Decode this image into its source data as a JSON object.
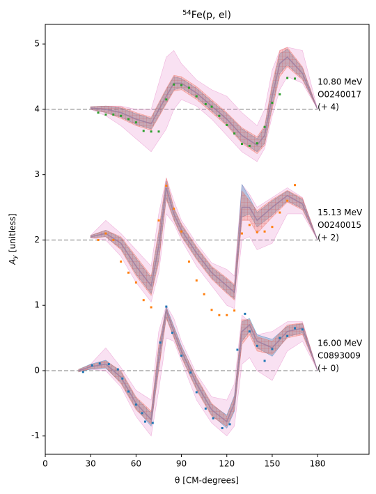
{
  "chart_data": {
    "type": "scatter",
    "title_sup": "54",
    "title": "Fe(p, el)",
    "xlabel": "θ [CM-degrees]",
    "ylabel": "A",
    "ylabel_sub": "y",
    "ylabel_unit": "[unitless]",
    "xlim": [
      0,
      214
    ],
    "ylim": [
      -1.28,
      5.3
    ],
    "xticks": [
      0,
      30,
      60,
      90,
      120,
      150,
      180
    ],
    "yticks": [
      -1,
      0,
      1,
      2,
      3,
      4,
      5
    ],
    "baseline_xlim": [
      0,
      180
    ],
    "model_color": "#9a7aa0",
    "datasets": [
      {
        "energy": "16.00 MeV",
        "entry": "C0893009",
        "offset": {
          "value": 0,
          "label": "(+ 0)"
        },
        "color": "#1f77b4",
        "x": [
          25,
          31,
          36,
          42,
          48,
          51,
          55,
          60,
          64,
          66,
          71,
          76,
          80,
          84,
          90,
          96,
          100,
          106,
          111,
          117,
          122,
          127,
          132,
          135,
          140,
          145,
          150,
          155,
          160,
          165,
          170
        ],
        "values": [
          -0.02,
          0.08,
          0.11,
          0.1,
          0.02,
          -0.12,
          -0.32,
          -0.52,
          -0.65,
          -0.78,
          -0.8,
          0.43,
          0.98,
          0.58,
          0.23,
          -0.03,
          -0.33,
          -0.58,
          -0.73,
          -0.88,
          -0.82,
          0.32,
          0.87,
          0.6,
          0.38,
          0.15,
          0.33,
          0.5,
          0.53,
          0.65,
          0.63
        ],
        "model": {
          "x": [
            22,
            30,
            40,
            50,
            60,
            70,
            75,
            80,
            85,
            90,
            100,
            110,
            120,
            125,
            130,
            135,
            140,
            150,
            160,
            170,
            180
          ],
          "mean": [
            0,
            0.06,
            0.1,
            -0.1,
            -0.5,
            -0.75,
            0.2,
            0.92,
            0.6,
            0.3,
            -0.2,
            -0.6,
            -0.78,
            -0.5,
            0.6,
            0.7,
            0.45,
            0.35,
            0.6,
            0.65,
            0
          ],
          "bands": [
            {
              "color": "#e377c2",
              "lower": [
                0,
                0.02,
                0,
                -0.25,
                -0.7,
                -1.0,
                -0.3,
                0.5,
                0.45,
                0.15,
                -0.45,
                -0.8,
                -1.0,
                -0.85,
                0.1,
                0.2,
                0.0,
                -0.15,
                0.3,
                0.45,
                0
              ],
              "upper": [
                0,
                0.1,
                0.35,
                0.05,
                -0.3,
                -0.45,
                0.6,
                1.0,
                0.8,
                0.45,
                -0.05,
                -0.4,
                -0.45,
                -0.2,
                0.85,
                0.75,
                0.55,
                0.6,
                0.75,
                0.75,
                0
              ]
            },
            {
              "color": "#1f77b4",
              "lower": [
                -0.02,
                0.02,
                0.04,
                -0.18,
                -0.58,
                -0.85,
                0.05,
                0.82,
                0.52,
                0.22,
                -0.28,
                -0.68,
                -0.88,
                -0.62,
                0.45,
                0.6,
                0.35,
                0.22,
                0.52,
                0.58,
                0
              ],
              "upper": [
                0.02,
                0.1,
                0.16,
                -0.02,
                -0.42,
                -0.65,
                0.35,
                0.98,
                0.68,
                0.38,
                -0.12,
                -0.52,
                -0.68,
                -0.38,
                0.75,
                0.8,
                0.55,
                0.48,
                0.68,
                0.72,
                0
              ]
            },
            {
              "color": "#f0705a",
              "lower": [
                -0.02,
                0.03,
                0.05,
                -0.2,
                -0.6,
                -0.82,
                0.0,
                0.8,
                0.5,
                0.2,
                -0.3,
                -0.7,
                -0.85,
                -0.6,
                0.4,
                0.55,
                0.3,
                0.25,
                0.5,
                0.55,
                0
              ],
              "upper": [
                0.02,
                0.09,
                0.15,
                0,
                -0.4,
                -0.62,
                0.4,
                0.96,
                0.66,
                0.36,
                -0.1,
                -0.5,
                -0.7,
                -0.4,
                0.78,
                0.78,
                0.52,
                0.45,
                0.7,
                0.73,
                0
              ]
            }
          ]
        }
      },
      {
        "energy": "15.13 MeV",
        "entry": "O0240015",
        "offset": {
          "value": 2,
          "label": "(+ 2)"
        },
        "color": "#ff7f0e",
        "x": [
          35,
          40,
          45,
          50,
          55,
          60,
          65,
          70,
          75,
          80,
          85,
          90,
          95,
          100,
          105,
          110,
          115,
          120,
          125,
          130,
          135,
          140,
          145,
          150,
          155,
          160,
          165
        ],
        "values": [
          2.0,
          2.1,
          2.0,
          1.67,
          1.5,
          1.35,
          1.08,
          0.97,
          2.3,
          2.83,
          2.48,
          2.13,
          1.67,
          1.38,
          1.17,
          0.93,
          0.85,
          0.85,
          0.92,
          2.1,
          2.23,
          2.12,
          2.13,
          2.2,
          2.42,
          2.6,
          2.84
        ],
        "model": {
          "x": [
            30,
            40,
            50,
            60,
            70,
            75,
            80,
            85,
            90,
            100,
            110,
            120,
            125,
            130,
            135,
            140,
            150,
            160,
            170,
            180
          ],
          "mean": [
            2.05,
            2.1,
            1.95,
            1.6,
            1.3,
            1.9,
            2.8,
            2.4,
            2.15,
            1.8,
            1.5,
            1.3,
            1.2,
            2.5,
            2.5,
            2.3,
            2.5,
            2.68,
            2.55,
            2.0
          ],
          "bands": [
            {
              "color": "#e377c2",
              "lower": [
                2.03,
                2.0,
                1.75,
                1.35,
                1.05,
                1.5,
                2.4,
                2.25,
                2.0,
                1.6,
                1.3,
                1.0,
                0.95,
                2.0,
                2.05,
                1.85,
                1.95,
                2.4,
                2.4,
                2.0
              ],
              "upper": [
                2.07,
                2.3,
                2.1,
                1.85,
                1.6,
                2.4,
                2.95,
                2.6,
                2.3,
                1.95,
                1.65,
                1.55,
                1.45,
                2.85,
                2.7,
                2.5,
                2.65,
                2.8,
                2.65,
                2.0
              ]
            },
            {
              "color": "#1f77b4",
              "lower": [
                2.03,
                2.05,
                1.87,
                1.48,
                1.18,
                1.7,
                2.65,
                2.32,
                2.07,
                1.72,
                1.42,
                1.2,
                1.1,
                2.35,
                2.4,
                2.2,
                2.38,
                2.6,
                2.48,
                2.0
              ],
              "upper": [
                2.07,
                2.15,
                2.03,
                1.72,
                1.42,
                2.1,
                2.9,
                2.48,
                2.23,
                1.88,
                1.58,
                1.4,
                1.3,
                2.85,
                2.65,
                2.42,
                2.6,
                2.75,
                2.62,
                2.0
              ]
            },
            {
              "color": "#f0705a",
              "lower": [
                2.03,
                2.05,
                1.85,
                1.45,
                1.15,
                1.65,
                2.62,
                2.3,
                2.05,
                1.7,
                1.4,
                1.18,
                1.08,
                2.3,
                2.3,
                2.1,
                2.35,
                2.58,
                2.46,
                2.0
              ],
              "upper": [
                2.07,
                2.15,
                2.05,
                1.75,
                1.45,
                2.15,
                2.95,
                2.5,
                2.25,
                1.9,
                1.6,
                1.42,
                1.32,
                2.75,
                2.6,
                2.45,
                2.62,
                2.76,
                2.64,
                2.0
              ]
            }
          ]
        }
      },
      {
        "energy": "10.80 MeV",
        "entry": "O0240017",
        "offset": {
          "value": 4,
          "label": "(+ 4)"
        },
        "color": "#2ca02c",
        "x": [
          35,
          40,
          45,
          50,
          55,
          60,
          65,
          70,
          75,
          80,
          85,
          90,
          95,
          100,
          106,
          110,
          115,
          120,
          125,
          130,
          135,
          140,
          145,
          150,
          155,
          160,
          165
        ],
        "values": [
          3.95,
          3.92,
          3.92,
          3.9,
          3.85,
          3.8,
          3.67,
          3.66,
          3.66,
          4.15,
          4.38,
          4.37,
          4.33,
          4.2,
          4.08,
          4.04,
          3.9,
          3.76,
          3.63,
          3.47,
          3.44,
          3.48,
          3.73,
          4.1,
          4.23,
          4.48,
          4.47
        ],
        "model": {
          "x": [
            30,
            40,
            50,
            60,
            70,
            80,
            85,
            90,
            100,
            110,
            120,
            130,
            140,
            145,
            150,
            155,
            160,
            170,
            180
          ],
          "mean": [
            4.02,
            4.0,
            3.95,
            3.85,
            3.78,
            4.2,
            4.4,
            4.4,
            4.25,
            4.05,
            3.85,
            3.6,
            3.45,
            3.6,
            4.2,
            4.7,
            4.8,
            4.55,
            4.0
          ],
          "bands": [
            {
              "color": "#e377c2",
              "lower": [
                4.0,
                3.9,
                3.75,
                3.55,
                3.35,
                3.7,
                4.0,
                4.15,
                4.05,
                3.85,
                3.6,
                3.35,
                3.2,
                3.4,
                3.9,
                4.3,
                4.5,
                4.4,
                4.0
              ],
              "upper": [
                4.04,
                4.05,
                4.05,
                4.0,
                4.0,
                4.8,
                4.9,
                4.7,
                4.45,
                4.3,
                4.2,
                3.95,
                3.75,
                4.0,
                4.6,
                4.9,
                4.95,
                4.9,
                4.0
              ]
            },
            {
              "color": "#1f77b4",
              "lower": [
                4.0,
                3.95,
                3.88,
                3.77,
                3.7,
                4.1,
                4.3,
                4.33,
                4.18,
                3.98,
                3.77,
                3.5,
                3.35,
                3.48,
                4.05,
                4.55,
                4.68,
                4.47,
                4.0
              ],
              "upper": [
                4.04,
                4.05,
                4.02,
                3.93,
                3.86,
                4.3,
                4.5,
                4.47,
                4.32,
                4.12,
                3.93,
                3.7,
                3.55,
                3.72,
                4.35,
                4.85,
                4.92,
                4.63,
                4.0
              ]
            },
            {
              "color": "#f0705a",
              "lower": [
                4.0,
                3.95,
                3.86,
                3.75,
                3.68,
                4.08,
                4.28,
                4.3,
                4.15,
                3.95,
                3.75,
                3.48,
                3.32,
                3.45,
                4.0,
                4.5,
                4.65,
                4.45,
                4.0
              ],
              "upper": [
                4.04,
                4.05,
                4.04,
                3.95,
                3.88,
                4.32,
                4.52,
                4.5,
                4.35,
                4.15,
                3.95,
                3.72,
                3.58,
                3.75,
                4.4,
                4.9,
                4.95,
                4.65,
                4.0
              ]
            }
          ]
        }
      }
    ]
  }
}
